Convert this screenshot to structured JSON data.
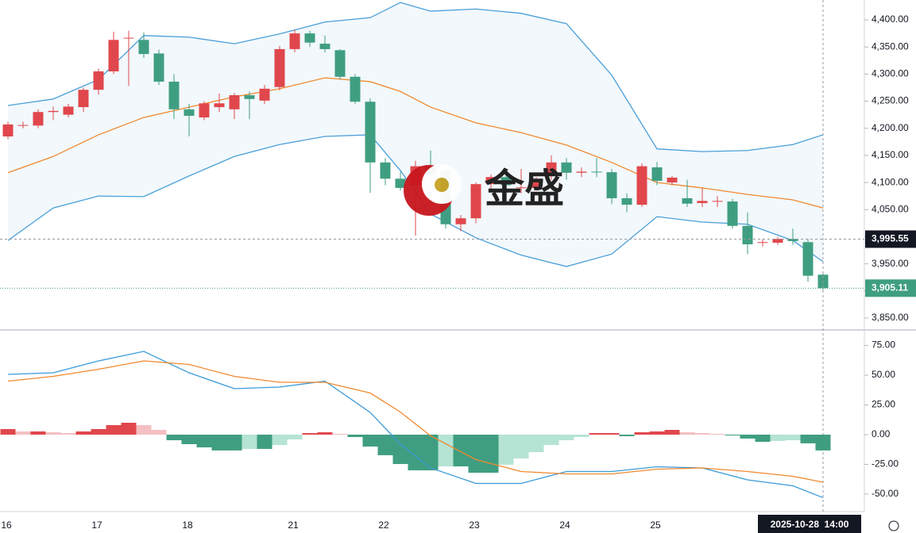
{
  "chart_data": [
    {
      "type": "candlestick",
      "up_color": "#e0474c",
      "down_color": "#3f9e81",
      "categories": [
        "16",
        null,
        null,
        null,
        null,
        null,
        "17",
        null,
        null,
        null,
        null,
        null,
        "18",
        null,
        null,
        null,
        null,
        null,
        null,
        "21",
        null,
        null,
        null,
        null,
        null,
        "22",
        null,
        null,
        null,
        null,
        null,
        "23",
        null,
        null,
        null,
        null,
        null,
        "24",
        null,
        null,
        null,
        null,
        null,
        "25",
        null,
        null,
        null,
        null,
        null,
        null,
        null,
        null,
        null,
        null,
        null
      ],
      "open": [
        4185,
        4205,
        4205,
        4230,
        4225,
        4239,
        4271,
        4305,
        4366,
        4363,
        4338,
        4286,
        4235,
        4220,
        4239,
        4235,
        4261,
        4251,
        4276,
        4346,
        4375,
        4356,
        4344,
        4295,
        4249,
        4137,
        4107,
        4095,
        4130,
        4122,
        4023,
        4034,
        4097,
        4110,
        4090,
        4090,
        4112,
        4137,
        4118,
        4120,
        4119,
        4071,
        4059,
        4128,
        4100,
        4071,
        4062,
        4065,
        4065,
        4020,
        3989,
        3989,
        3996,
        3990,
        3930
      ],
      "high": [
        4212,
        4212,
        4235,
        4240,
        4245,
        4275,
        4310,
        4378,
        4380,
        4377,
        4345,
        4300,
        4245,
        4250,
        4264,
        4265,
        4268,
        4280,
        4352,
        4382,
        4380,
        4371,
        4346,
        4300,
        4255,
        4145,
        4120,
        4140,
        4159,
        4128,
        4040,
        4100,
        4115,
        4125,
        4125,
        4110,
        4150,
        4145,
        4128,
        4145,
        4125,
        4080,
        4135,
        4138,
        4112,
        4105,
        4090,
        4075,
        4070,
        4045,
        3995,
        4000,
        4015,
        3996,
        3932
      ],
      "low": [
        4180,
        4200,
        4200,
        4215,
        4220,
        4230,
        4262,
        4300,
        4278,
        4330,
        4280,
        4217,
        4185,
        4215,
        4230,
        4217,
        4217,
        4245,
        4270,
        4340,
        4350,
        4340,
        4290,
        4245,
        4081,
        4095,
        4085,
        4002,
        4100,
        4015,
        4010,
        4025,
        4085,
        4085,
        4080,
        4085,
        4105,
        4105,
        4110,
        4110,
        4060,
        4045,
        4055,
        4095,
        4095,
        4055,
        4055,
        4055,
        4015,
        3968,
        3982,
        3985,
        3985,
        3917,
        3902
      ],
      "close": [
        4207,
        4206,
        4230,
        4232,
        4240,
        4271,
        4305,
        4363,
        4367,
        4337,
        4286,
        4235,
        4223,
        4246,
        4246,
        4261,
        4254,
        4273,
        4346,
        4375,
        4358,
        4346,
        4295,
        4249,
        4137,
        4107,
        4090,
        4130,
        4115,
        4023,
        4034,
        4097,
        4110,
        4095,
        4091,
        4105,
        4137,
        4118,
        4120,
        4119,
        4071,
        4059,
        4130,
        4103,
        4109,
        4061,
        4066,
        4066,
        4020,
        3986,
        3990,
        3996,
        3992,
        3928,
        3905.11
      ],
      "bands": {
        "x": [
          0,
          3,
          6,
          9,
          12,
          15,
          18,
          21,
          24,
          26,
          28,
          31,
          34,
          37,
          40,
          43,
          46,
          49,
          52,
          54
        ],
        "series": [
          {
            "color": "#4a9fd8",
            "values": [
              4242,
              4254,
              4290,
              4371,
              4368,
              4356,
              4374,
              4396,
              4404,
              4432,
              4416,
              4420,
              4412,
              4393,
              4298,
              4162,
              4157,
              4159,
              4170,
              4188
            ]
          },
          {
            "color": "#f0892e",
            "values": [
              4118,
              4148,
              4188,
              4220,
              4239,
              4258,
              4273,
              4293,
              4286,
              4268,
              4239,
              4210,
              4192,
              4169,
              4137,
              4100,
              4090,
              4078,
              4068,
              4053
            ]
          },
          {
            "color": "#4a9fd8",
            "values": [
              3993,
              4053,
              4075,
              4074,
              4112,
              4148,
              4170,
              4185,
              4188,
              4122,
              4042,
              3998,
              3966,
              3945,
              3968,
              4037,
              4027,
              4023,
              3993,
              3954
            ]
          }
        ]
      },
      "ylim": [
        3829.5,
        4436.6
      ],
      "yticks": [
        {
          "value": 3850,
          "label": "3,850.00"
        },
        {
          "value": 3900,
          "label": "3,900.00"
        },
        {
          "value": 3950,
          "label": "3,950.00"
        },
        {
          "value": 4000,
          "label": "4,000.00"
        },
        {
          "value": 4050,
          "label": "4,050.00"
        },
        {
          "value": 4100,
          "label": "4,100.00"
        },
        {
          "value": 4150,
          "label": "4,150.00"
        },
        {
          "value": 4200,
          "label": "4,200.00"
        },
        {
          "value": 4250,
          "label": "4,250.00"
        },
        {
          "value": 4300,
          "label": "4,300.00"
        },
        {
          "value": 4350,
          "label": "4,350.00"
        },
        {
          "value": 4400,
          "label": "4,400.00"
        }
      ],
      "crosshair_price": {
        "value": 3995.55,
        "label": "3,995.55"
      },
      "last_price": {
        "value": 3905.11,
        "label": "3,905.11"
      },
      "crosshair_label": "2025-10-28  14:00",
      "watermark": "金盛"
    },
    {
      "type": "macd",
      "x": [
        0,
        3,
        6,
        9,
        12,
        15,
        18,
        21,
        24,
        26,
        28,
        31,
        34,
        37,
        40,
        43,
        46,
        49,
        52,
        54
      ],
      "series": [
        {
          "color": "#3a9ad9",
          "values": [
            50.7,
            52,
            62,
            70,
            52,
            38.7,
            40,
            45,
            18.7,
            -8,
            -28,
            -41,
            -41,
            -31,
            -31,
            -27,
            -28,
            -38,
            -43,
            -53
          ]
        },
        {
          "color": "#f0892e",
          "values": [
            45,
            49,
            55,
            62,
            59,
            49,
            44,
            44,
            35,
            19,
            -1,
            -21,
            -31,
            -33,
            -33,
            -29,
            -28,
            -31,
            -35,
            -40
          ]
        }
      ],
      "histogram": [
        4.7,
        2.7,
        2.7,
        2,
        1.3,
        2.7,
        4.7,
        8,
        10,
        8,
        4,
        -4.7,
        -8,
        -10.7,
        -13.3,
        -13.3,
        -12,
        -12,
        -8.7,
        -4,
        1.3,
        2,
        0.7,
        -2,
        -10,
        -17.3,
        -24.7,
        -30,
        -30,
        -26.7,
        -26.7,
        -32,
        -32,
        -25.3,
        -20,
        -14.7,
        -8.7,
        -4.7,
        -2,
        1.3,
        1.3,
        -1.3,
        2,
        2.7,
        4,
        2,
        1.3,
        0.7,
        -0.7,
        -3.3,
        -6,
        -5.3,
        -4.7,
        -7.3,
        -13.3
      ],
      "histogram_colors": {
        "up": "#e0474c",
        "up_fading": "#f4c0c3",
        "down": "#3f9e81",
        "down_fading": "#b5e3d4"
      },
      "ylim": [
        -64.7,
        86.7
      ],
      "yticks": [
        {
          "value": -50,
          "label": "-50.00"
        },
        {
          "value": -25,
          "label": "-25.00"
        },
        {
          "value": 0,
          "label": "0.00"
        },
        {
          "value": 25,
          "label": "25.00"
        },
        {
          "value": 50,
          "label": "50.00"
        },
        {
          "value": 75,
          "label": "75.00"
        }
      ]
    }
  ]
}
